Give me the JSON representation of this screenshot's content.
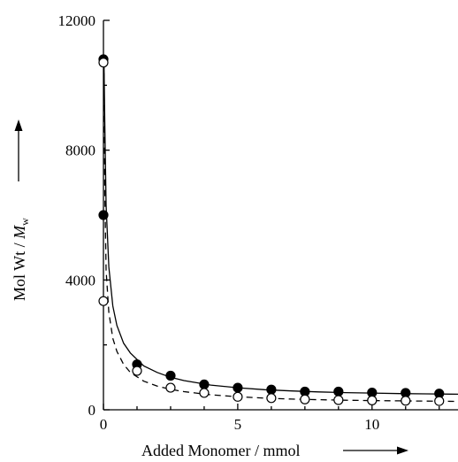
{
  "chart_data": {
    "type": "scatter",
    "xlabel": "Added Monomer / mmol",
    "ylabel_prefix": "Mol Wt / ",
    "ylabel_symbol": "M",
    "ylabel_subscript": "w",
    "xlim": [
      0,
      13.2
    ],
    "ylim": [
      0,
      12000
    ],
    "x_ticks": [
      0,
      5,
      10
    ],
    "y_ticks": [
      0,
      4000,
      8000,
      12000
    ],
    "x_tick_labels": [
      "0",
      "5",
      "10"
    ],
    "y_tick_labels": [
      "0",
      "4000",
      "8000",
      "12000"
    ],
    "x_minor_ticks": [
      1.25,
      2.5,
      3.75,
      6.25,
      7.5,
      8.75,
      11.25,
      12.5
    ],
    "y_minor_ticks": [
      2000,
      6000,
      10000
    ],
    "grid": false,
    "series": [
      {
        "marker": "filled-circle",
        "x": [
          0,
          0,
          1.25,
          2.5,
          3.75,
          5,
          6.25,
          7.5,
          8.75,
          10,
          11.25,
          12.5
        ],
        "y": [
          10800,
          6000,
          1400,
          1050,
          780,
          680,
          620,
          560,
          560,
          530,
          520,
          500
        ]
      },
      {
        "marker": "open-circle",
        "x": [
          0,
          0,
          1.25,
          2.5,
          3.75,
          5,
          6.25,
          7.5,
          8.75,
          10,
          11.25,
          12.5
        ],
        "y": [
          10700,
          3350,
          1200,
          680,
          520,
          400,
          360,
          320,
          300,
          290,
          280,
          270
        ]
      }
    ],
    "fits": [
      {
        "style": "solid",
        "x": [
          0.02,
          0.05,
          0.1,
          0.2,
          0.35,
          0.5,
          0.75,
          1,
          1.5,
          2,
          2.5,
          3,
          4,
          5,
          6,
          7,
          8,
          9,
          10,
          11,
          12,
          13.2
        ],
        "y": [
          10700,
          8900,
          6300,
          4400,
          3200,
          2600,
          2050,
          1750,
          1350,
          1150,
          1000,
          900,
          760,
          680,
          620,
          580,
          550,
          530,
          515,
          500,
          490,
          480
        ]
      },
      {
        "style": "dashed",
        "x": [
          0.02,
          0.05,
          0.1,
          0.2,
          0.35,
          0.5,
          0.75,
          1,
          1.5,
          2,
          2.5,
          3,
          4,
          5,
          6,
          7,
          8,
          9,
          10,
          11,
          12,
          13.2
        ],
        "y": [
          10700,
          6800,
          4300,
          3000,
          2200,
          1800,
          1400,
          1150,
          880,
          730,
          630,
          560,
          460,
          400,
          360,
          330,
          310,
          295,
          285,
          275,
          268,
          260
        ]
      }
    ]
  }
}
